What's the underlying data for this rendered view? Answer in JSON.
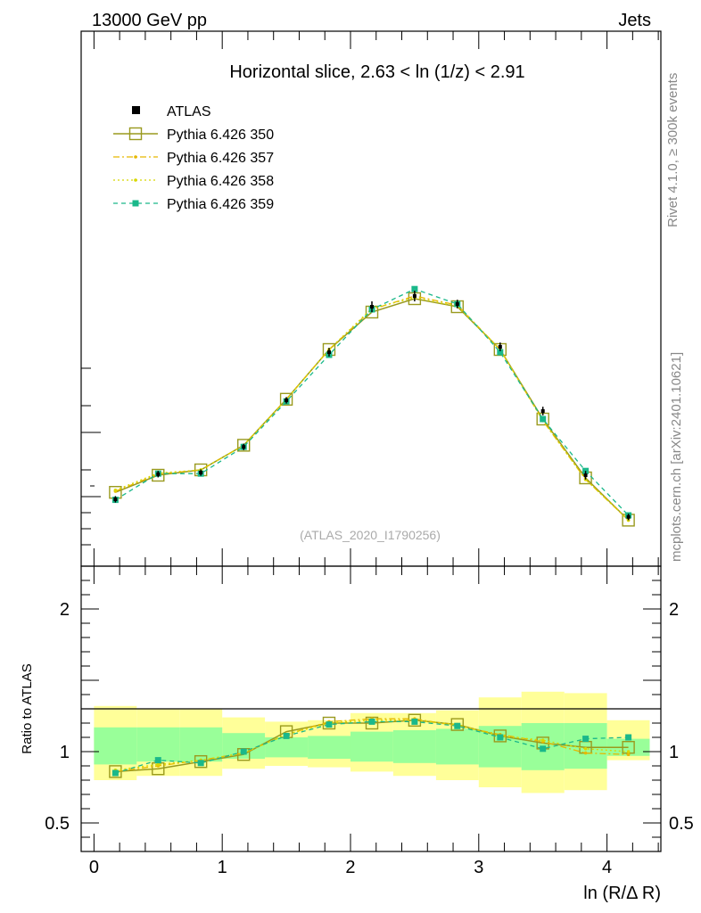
{
  "header": {
    "energy_label": "13000 GeV pp",
    "process_label": "Jets"
  },
  "side_labels": {
    "rivet": "Rivet 4.1.0, ≥ 300k events",
    "mcplots": "mcplots.cern.ch [arXiv:2401.10621]"
  },
  "chart_data": {
    "type": "line",
    "title": "Horizontal slice, 2.63 < ln (1/z) < 2.91",
    "analysis_id": "(ATLAS_2020_I1790256)",
    "xlabel": "ln (R/Δ R)",
    "ylabel_ratio": "Ratio to ATLAS",
    "xlim": [
      -0.1,
      4.42
    ],
    "ylim_main": [
      0.0,
      1.0
    ],
    "ylim_ratio": [
      0.3,
      2.3
    ],
    "xticks": [
      0,
      1,
      2,
      3,
      4
    ],
    "ratio_yticks": [
      0.5,
      1,
      2
    ],
    "x": [
      0.167,
      0.5,
      0.833,
      1.167,
      1.5,
      1.833,
      2.167,
      2.5,
      2.833,
      3.167,
      3.5,
      3.833,
      4.167
    ],
    "bands": {
      "edges": [
        0.0,
        0.333,
        0.667,
        1.0,
        1.333,
        1.667,
        2.0,
        2.333,
        2.667,
        3.0,
        3.333,
        3.667,
        4.0,
        4.333
      ],
      "outer_lo": [
        0.8,
        0.83,
        0.83,
        0.88,
        0.9,
        0.89,
        0.86,
        0.83,
        0.8,
        0.75,
        0.71,
        0.73,
        0.94
      ],
      "outer_hi": [
        1.32,
        1.3,
        1.3,
        1.24,
        1.21,
        1.22,
        1.27,
        1.27,
        1.29,
        1.38,
        1.42,
        1.41,
        1.22
      ],
      "inner_lo": [
        0.91,
        0.93,
        0.93,
        0.95,
        0.96,
        0.95,
        0.93,
        0.92,
        0.91,
        0.89,
        0.87,
        0.88,
        0.97
      ],
      "inner_hi": [
        1.17,
        1.17,
        1.17,
        1.13,
        1.1,
        1.11,
        1.14,
        1.15,
        1.16,
        1.18,
        1.2,
        1.2,
        1.09
      ]
    },
    "series": [
      {
        "name": "ATLAS",
        "color": "#000000",
        "style": "data",
        "values": [
          0.125,
          0.172,
          0.175,
          0.223,
          0.31,
          0.4,
          0.485,
          0.505,
          0.49,
          0.41,
          0.29,
          0.17,
          0.092
        ],
        "errors": [
          0.006,
          0.006,
          0.006,
          0.006,
          0.006,
          0.008,
          0.01,
          0.01,
          0.008,
          0.008,
          0.008,
          0.008,
          0.006
        ],
        "ratio": [
          1,
          1,
          1,
          1,
          1,
          1,
          1,
          1,
          1,
          1,
          1,
          1,
          1
        ]
      },
      {
        "name": "Pythia 6.426 350",
        "color": "#9a9a1e",
        "style": "solid-open-square",
        "values": [
          0.138,
          0.17,
          0.18,
          0.226,
          0.312,
          0.405,
          0.475,
          0.5,
          0.485,
          0.405,
          0.275,
          0.165,
          0.086
        ],
        "ratio": [
          0.86,
          0.88,
          0.93,
          0.98,
          1.14,
          1.2,
          1.2,
          1.22,
          1.19,
          1.11,
          1.06,
          1.03,
          1.03
        ]
      },
      {
        "name": "Pythia 6.426 357",
        "color": "#e6b800",
        "style": "dashdot",
        "values": [
          0.14,
          0.172,
          0.18,
          0.226,
          0.312,
          0.405,
          0.48,
          0.505,
          0.488,
          0.405,
          0.272,
          0.162,
          0.086
        ],
        "ratio": [
          0.86,
          0.9,
          0.94,
          0.99,
          1.12,
          1.21,
          1.23,
          1.23,
          1.18,
          1.12,
          1.07,
          0.99,
          0.98
        ]
      },
      {
        "name": "Pythia 6.426 358",
        "color": "#d8d800",
        "style": "dotted",
        "values": [
          0.142,
          0.174,
          0.18,
          0.226,
          0.312,
          0.405,
          0.482,
          0.502,
          0.486,
          0.405,
          0.272,
          0.162,
          0.086
        ],
        "ratio": [
          0.87,
          0.91,
          0.94,
          0.99,
          1.12,
          1.2,
          1.22,
          1.22,
          1.19,
          1.11,
          1.08,
          1.02,
          1.0
        ]
      },
      {
        "name": "Pythia 6.426 359",
        "color": "#1ab88a",
        "style": "dashed-filled-square",
        "values": [
          0.124,
          0.173,
          0.173,
          0.223,
          0.308,
          0.395,
          0.48,
          0.518,
          0.49,
          0.4,
          0.275,
          0.178,
          0.095
        ],
        "ratio": [
          0.85,
          0.94,
          0.92,
          1.0,
          1.11,
          1.19,
          1.21,
          1.21,
          1.18,
          1.1,
          1.02,
          1.09,
          1.1
        ]
      }
    ]
  }
}
